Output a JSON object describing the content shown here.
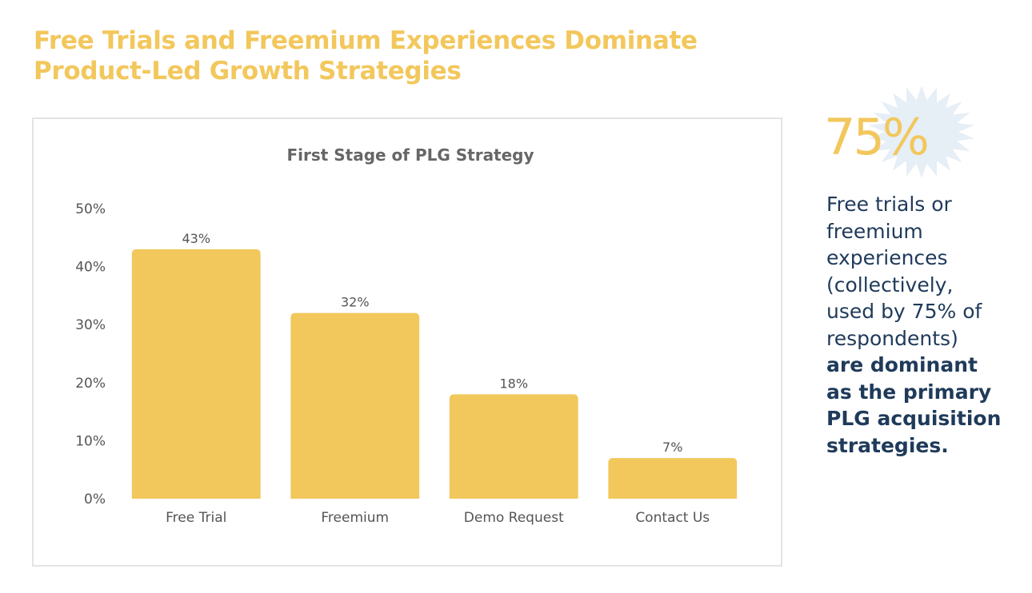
{
  "headline": {
    "line1": "Free Trials and Freemium Experiences Dominate",
    "line2": "Product-Led Growth Strategies"
  },
  "colors": {
    "accent": "#f2c75c",
    "navy": "#1f3a5a",
    "panel_border": "#e4e4e4",
    "starburst": "#e6eef6"
  },
  "chart_data": {
    "type": "bar",
    "title": "First Stage of PLG Strategy",
    "categories": [
      "Free Trial",
      "Freemium",
      "Demo Request",
      "Contact Us"
    ],
    "values": [
      43,
      32,
      18,
      7
    ],
    "data_labels": [
      "43%",
      "32%",
      "18%",
      "7%"
    ],
    "ylim": [
      0,
      50
    ],
    "yticks": [
      0,
      10,
      20,
      30,
      40,
      50
    ],
    "ytick_labels": [
      "0%",
      "10%",
      "20%",
      "30%",
      "40%",
      "50%"
    ],
    "xlabel": "",
    "ylabel": "",
    "grid": false,
    "legend": "none"
  },
  "callout": {
    "stat": "75%",
    "icon": "starburst-icon",
    "normal_lines": [
      "Free trials or",
      "freemium",
      "experiences",
      "(collectively,",
      "used by 75% of",
      "respondents)"
    ],
    "bold_lines": [
      "are dominant",
      "as the primary",
      "PLG acquisition",
      "strategies."
    ]
  }
}
